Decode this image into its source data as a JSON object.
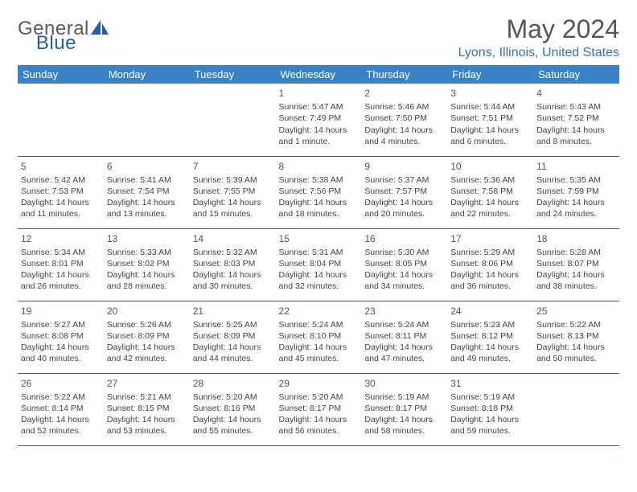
{
  "brand": {
    "name_part1": "General",
    "name_part2": "Blue"
  },
  "title": "May 2024",
  "location": "Lyons, Illinois, United States",
  "colors": {
    "header_bg": "#3b82c4",
    "header_text": "#ffffff",
    "row_border": "#2f5e8f",
    "location_color": "#3873b3",
    "body_text": "#444444",
    "title_color": "#555555",
    "logo_accent": "#1f5ea8"
  },
  "fonts": {
    "title_size_pt": 24,
    "location_size_pt": 12,
    "header_size_pt": 10,
    "cell_size_pt": 8
  },
  "dayHeaders": [
    "Sunday",
    "Monday",
    "Tuesday",
    "Wednesday",
    "Thursday",
    "Friday",
    "Saturday"
  ],
  "weeks": [
    [
      {
        "n": "",
        "sr": "",
        "ss": "",
        "dl": ""
      },
      {
        "n": "",
        "sr": "",
        "ss": "",
        "dl": ""
      },
      {
        "n": "",
        "sr": "",
        "ss": "",
        "dl": ""
      },
      {
        "n": "1",
        "sr": "Sunrise: 5:47 AM",
        "ss": "Sunset: 7:49 PM",
        "dl": "Daylight: 14 hours and 1 minute."
      },
      {
        "n": "2",
        "sr": "Sunrise: 5:46 AM",
        "ss": "Sunset: 7:50 PM",
        "dl": "Daylight: 14 hours and 4 minutes."
      },
      {
        "n": "3",
        "sr": "Sunrise: 5:44 AM",
        "ss": "Sunset: 7:51 PM",
        "dl": "Daylight: 14 hours and 6 minutes."
      },
      {
        "n": "4",
        "sr": "Sunrise: 5:43 AM",
        "ss": "Sunset: 7:52 PM",
        "dl": "Daylight: 14 hours and 8 minutes."
      }
    ],
    [
      {
        "n": "5",
        "sr": "Sunrise: 5:42 AM",
        "ss": "Sunset: 7:53 PM",
        "dl": "Daylight: 14 hours and 11 minutes."
      },
      {
        "n": "6",
        "sr": "Sunrise: 5:41 AM",
        "ss": "Sunset: 7:54 PM",
        "dl": "Daylight: 14 hours and 13 minutes."
      },
      {
        "n": "7",
        "sr": "Sunrise: 5:39 AM",
        "ss": "Sunset: 7:55 PM",
        "dl": "Daylight: 14 hours and 15 minutes."
      },
      {
        "n": "8",
        "sr": "Sunrise: 5:38 AM",
        "ss": "Sunset: 7:56 PM",
        "dl": "Daylight: 14 hours and 18 minutes."
      },
      {
        "n": "9",
        "sr": "Sunrise: 5:37 AM",
        "ss": "Sunset: 7:57 PM",
        "dl": "Daylight: 14 hours and 20 minutes."
      },
      {
        "n": "10",
        "sr": "Sunrise: 5:36 AM",
        "ss": "Sunset: 7:58 PM",
        "dl": "Daylight: 14 hours and 22 minutes."
      },
      {
        "n": "11",
        "sr": "Sunrise: 5:35 AM",
        "ss": "Sunset: 7:59 PM",
        "dl": "Daylight: 14 hours and 24 minutes."
      }
    ],
    [
      {
        "n": "12",
        "sr": "Sunrise: 5:34 AM",
        "ss": "Sunset: 8:01 PM",
        "dl": "Daylight: 14 hours and 26 minutes."
      },
      {
        "n": "13",
        "sr": "Sunrise: 5:33 AM",
        "ss": "Sunset: 8:02 PM",
        "dl": "Daylight: 14 hours and 28 minutes."
      },
      {
        "n": "14",
        "sr": "Sunrise: 5:32 AM",
        "ss": "Sunset: 8:03 PM",
        "dl": "Daylight: 14 hours and 30 minutes."
      },
      {
        "n": "15",
        "sr": "Sunrise: 5:31 AM",
        "ss": "Sunset: 8:04 PM",
        "dl": "Daylight: 14 hours and 32 minutes."
      },
      {
        "n": "16",
        "sr": "Sunrise: 5:30 AM",
        "ss": "Sunset: 8:05 PM",
        "dl": "Daylight: 14 hours and 34 minutes."
      },
      {
        "n": "17",
        "sr": "Sunrise: 5:29 AM",
        "ss": "Sunset: 8:06 PM",
        "dl": "Daylight: 14 hours and 36 minutes."
      },
      {
        "n": "18",
        "sr": "Sunrise: 5:28 AM",
        "ss": "Sunset: 8:07 PM",
        "dl": "Daylight: 14 hours and 38 minutes."
      }
    ],
    [
      {
        "n": "19",
        "sr": "Sunrise: 5:27 AM",
        "ss": "Sunset: 8:08 PM",
        "dl": "Daylight: 14 hours and 40 minutes."
      },
      {
        "n": "20",
        "sr": "Sunrise: 5:26 AM",
        "ss": "Sunset: 8:09 PM",
        "dl": "Daylight: 14 hours and 42 minutes."
      },
      {
        "n": "21",
        "sr": "Sunrise: 5:25 AM",
        "ss": "Sunset: 8:09 PM",
        "dl": "Daylight: 14 hours and 44 minutes."
      },
      {
        "n": "22",
        "sr": "Sunrise: 5:24 AM",
        "ss": "Sunset: 8:10 PM",
        "dl": "Daylight: 14 hours and 45 minutes."
      },
      {
        "n": "23",
        "sr": "Sunrise: 5:24 AM",
        "ss": "Sunset: 8:11 PM",
        "dl": "Daylight: 14 hours and 47 minutes."
      },
      {
        "n": "24",
        "sr": "Sunrise: 5:23 AM",
        "ss": "Sunset: 8:12 PM",
        "dl": "Daylight: 14 hours and 49 minutes."
      },
      {
        "n": "25",
        "sr": "Sunrise: 5:22 AM",
        "ss": "Sunset: 8:13 PM",
        "dl": "Daylight: 14 hours and 50 minutes."
      }
    ],
    [
      {
        "n": "26",
        "sr": "Sunrise: 5:22 AM",
        "ss": "Sunset: 8:14 PM",
        "dl": "Daylight: 14 hours and 52 minutes."
      },
      {
        "n": "27",
        "sr": "Sunrise: 5:21 AM",
        "ss": "Sunset: 8:15 PM",
        "dl": "Daylight: 14 hours and 53 minutes."
      },
      {
        "n": "28",
        "sr": "Sunrise: 5:20 AM",
        "ss": "Sunset: 8:16 PM",
        "dl": "Daylight: 14 hours and 55 minutes."
      },
      {
        "n": "29",
        "sr": "Sunrise: 5:20 AM",
        "ss": "Sunset: 8:17 PM",
        "dl": "Daylight: 14 hours and 56 minutes."
      },
      {
        "n": "30",
        "sr": "Sunrise: 5:19 AM",
        "ss": "Sunset: 8:17 PM",
        "dl": "Daylight: 14 hours and 58 minutes."
      },
      {
        "n": "31",
        "sr": "Sunrise: 5:19 AM",
        "ss": "Sunset: 8:18 PM",
        "dl": "Daylight: 14 hours and 59 minutes."
      },
      {
        "n": "",
        "sr": "",
        "ss": "",
        "dl": ""
      }
    ]
  ]
}
